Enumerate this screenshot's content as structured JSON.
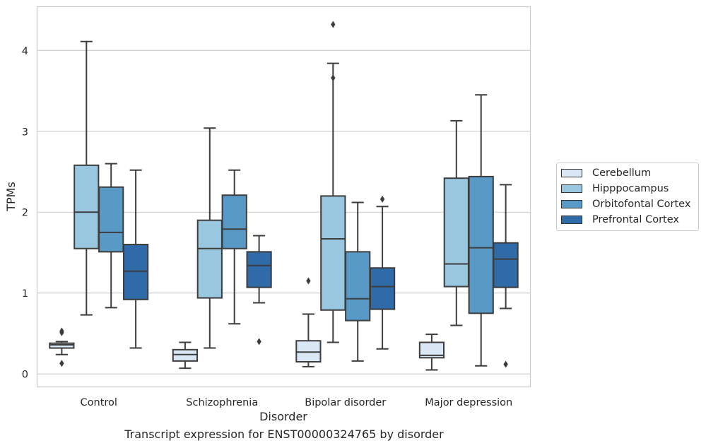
{
  "chart_data": {
    "type": "box",
    "title": "Transcript expression for ENST00000324765 by disorder",
    "xlabel": "Disorder",
    "ylabel": "TPMs",
    "ylim": [
      -0.16,
      4.54
    ],
    "yticks": [
      "0",
      "1",
      "2",
      "3",
      "4"
    ],
    "grid": "horizontal",
    "legend_position": "right",
    "categories": [
      "Control",
      "Schizophrenia",
      "Bipolar disorder",
      "Major depression"
    ],
    "series": [
      {
        "name": "Cerebellum",
        "color": "#dae8f5",
        "boxes": [
          {
            "whisker_low": 0.24,
            "q1": 0.32,
            "median": 0.36,
            "q3": 0.38,
            "whisker_high": 0.4,
            "outliers": [
              0.13,
              0.51,
              0.53
            ]
          },
          {
            "whisker_low": 0.07,
            "q1": 0.16,
            "median": 0.24,
            "q3": 0.3,
            "whisker_high": 0.39,
            "outliers": []
          },
          {
            "whisker_low": 0.09,
            "q1": 0.15,
            "median": 0.27,
            "q3": 0.41,
            "whisker_high": 0.74,
            "outliers": [
              1.15
            ]
          },
          {
            "whisker_low": 0.05,
            "q1": 0.2,
            "median": 0.23,
            "q3": 0.39,
            "whisker_high": 0.49,
            "outliers": []
          }
        ]
      },
      {
        "name": "Hipppocampus",
        "color": "#9ac7e0",
        "boxes": [
          {
            "whisker_low": 0.73,
            "q1": 1.55,
            "median": 2.0,
            "q3": 2.58,
            "whisker_high": 4.11,
            "outliers": []
          },
          {
            "whisker_low": 0.32,
            "q1": 0.94,
            "median": 1.55,
            "q3": 1.9,
            "whisker_high": 3.04,
            "outliers": []
          },
          {
            "whisker_low": 0.39,
            "q1": 0.79,
            "median": 1.67,
            "q3": 2.2,
            "whisker_high": 3.84,
            "outliers": [
              3.66,
              4.32
            ]
          },
          {
            "whisker_low": 0.6,
            "q1": 1.08,
            "median": 1.36,
            "q3": 2.42,
            "whisker_high": 3.13,
            "outliers": []
          }
        ]
      },
      {
        "name": "Orbitofontal Cortex",
        "color": "#5999c6",
        "boxes": [
          {
            "whisker_low": 0.82,
            "q1": 1.51,
            "median": 1.75,
            "q3": 2.31,
            "whisker_high": 2.6,
            "outliers": []
          },
          {
            "whisker_low": 0.62,
            "q1": 1.55,
            "median": 1.79,
            "q3": 2.21,
            "whisker_high": 2.52,
            "outliers": []
          },
          {
            "whisker_low": 0.16,
            "q1": 0.66,
            "median": 0.93,
            "q3": 1.51,
            "whisker_high": 2.12,
            "outliers": []
          },
          {
            "whisker_low": 0.1,
            "q1": 0.75,
            "median": 1.56,
            "q3": 2.44,
            "whisker_high": 3.45,
            "outliers": []
          }
        ]
      },
      {
        "name": "Prefrontal Cortex",
        "color": "#2f6ba9",
        "boxes": [
          {
            "whisker_low": 0.32,
            "q1": 0.92,
            "median": 1.27,
            "q3": 1.6,
            "whisker_high": 2.52,
            "outliers": []
          },
          {
            "whisker_low": 0.88,
            "q1": 1.07,
            "median": 1.34,
            "q3": 1.51,
            "whisker_high": 1.71,
            "outliers": [
              0.4
            ]
          },
          {
            "whisker_low": 0.31,
            "q1": 0.8,
            "median": 1.08,
            "q3": 1.31,
            "whisker_high": 2.07,
            "outliers": [
              2.16
            ]
          },
          {
            "whisker_low": 0.81,
            "q1": 1.07,
            "median": 1.42,
            "q3": 1.62,
            "whisker_high": 2.34,
            "outliers": [
              0.12
            ]
          }
        ]
      }
    ]
  }
}
